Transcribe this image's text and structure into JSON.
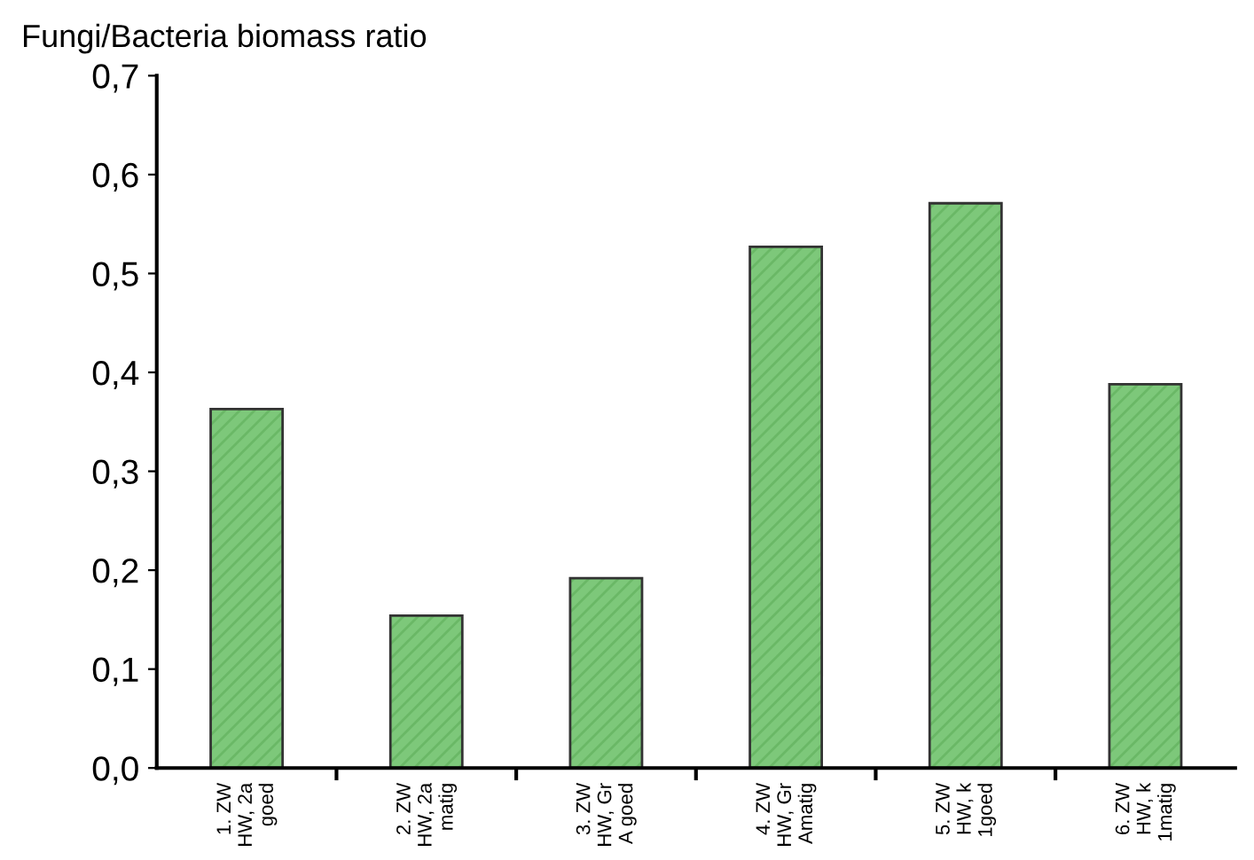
{
  "chart_data": {
    "type": "bar",
    "title": "Fungi/Bacteria biomass ratio",
    "categories": [
      "1. ZW\nHW, 2a\ngoed",
      "2. ZW\nHW, 2a\nmatig",
      "3. ZW\nHW, Gr\nA goed",
      "4. ZW\nHW, Gr\nAmatig",
      "5. ZW\nHW, k\n1goed",
      "6. ZW\nHW, k\n1matig"
    ],
    "values": [
      0.363,
      0.154,
      0.192,
      0.527,
      0.571,
      0.388
    ],
    "color": "#7dc87a",
    "ylim": [
      0,
      0.7
    ],
    "yticks": [
      {
        "value": 0,
        "label": "0,0"
      },
      {
        "value": 0.1,
        "label": "0,1"
      },
      {
        "value": 0.2,
        "label": "0,2"
      },
      {
        "value": 0.3,
        "label": "0,3"
      },
      {
        "value": 0.4,
        "label": "0,4"
      },
      {
        "value": 0.5,
        "label": "0,5"
      },
      {
        "value": 0.6,
        "label": "0,6"
      },
      {
        "value": 0.7,
        "label": "0,7"
      }
    ],
    "grid": false
  }
}
